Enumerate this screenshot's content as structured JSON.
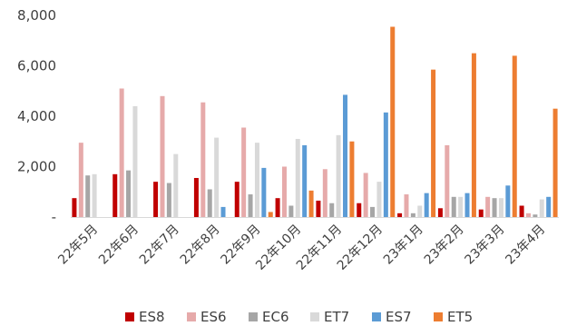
{
  "chart_data": {
    "type": "bar",
    "categories": [
      "22年5月",
      "22年6月",
      "22年7月",
      "22年8月",
      "22年9月",
      "22年10月",
      "22年11月",
      "22年12月",
      "23年1月",
      "23年2月",
      "23年3月",
      "23年4月"
    ],
    "series": [
      {
        "name": "ES8",
        "color": "#c00000",
        "values": [
          750,
          1700,
          1400,
          1550,
          1400,
          750,
          650,
          550,
          150,
          350,
          300,
          450
        ]
      },
      {
        "name": "ES6",
        "color": "#e6aaaa",
        "values": [
          2950,
          5100,
          4800,
          4550,
          3550,
          2000,
          1900,
          1750,
          900,
          2850,
          800,
          150
        ]
      },
      {
        "name": "EC6",
        "color": "#a6a6a6",
        "values": [
          1650,
          1850,
          1350,
          1100,
          900,
          450,
          550,
          400,
          150,
          800,
          750,
          100
        ]
      },
      {
        "name": "ET7",
        "color": "#d9d9d9",
        "values": [
          1700,
          4400,
          2500,
          3150,
          2950,
          3100,
          3250,
          1400,
          450,
          800,
          750,
          700
        ]
      },
      {
        "name": "ES7",
        "color": "#5b9bd5",
        "values": [
          0,
          0,
          0,
          400,
          1950,
          2850,
          4850,
          4150,
          950,
          950,
          1250,
          800
        ]
      },
      {
        "name": "ET5",
        "color": "#ed7d31",
        "values": [
          0,
          0,
          0,
          0,
          200,
          1050,
          3000,
          7550,
          5850,
          6500,
          6400,
          4300
        ]
      }
    ],
    "y_ticks": [
      "-",
      "2,000",
      "4,000",
      "6,000",
      "8,000"
    ],
    "ylim": [
      0,
      8000
    ],
    "grid": false,
    "legend": "bottom"
  }
}
